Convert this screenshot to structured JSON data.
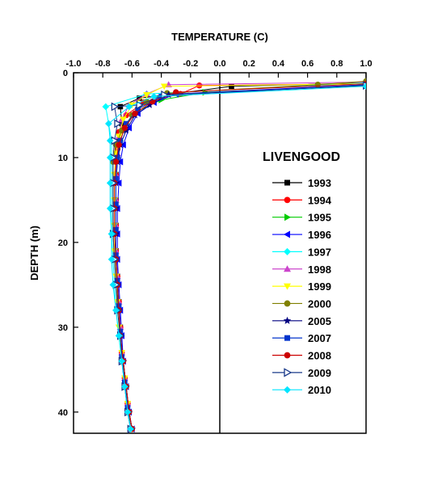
{
  "chart_data": {
    "type": "line",
    "title": "",
    "xlabel": "TEMPERATURE (C)",
    "ylabel": "DEPTH (m)",
    "xlim": [
      -1.0,
      1.0
    ],
    "ylim": [
      42.5,
      0
    ],
    "x_axis_position": "top",
    "y_inverted": true,
    "x_ticks": [
      "-1.0",
      "-0.8",
      "-0.6",
      "-0.4",
      "-0.2",
      "0.0",
      "0.2",
      "0.4",
      "0.6",
      "0.8",
      "1.0"
    ],
    "y_ticks": [
      "0",
      "10",
      "20",
      "30",
      "40"
    ],
    "grid": false,
    "reference_line_x": 0.0,
    "legend_title": "LIVENGOOD",
    "legend_position": "right",
    "series": [
      {
        "name": "1993",
        "color": "#000000",
        "marker": "square",
        "points": [
          [
            1.0,
            1.2
          ],
          [
            0.08,
            1.6
          ],
          [
            -0.55,
            3.0
          ],
          [
            -0.68,
            4.0
          ],
          [
            -0.67,
            6.0
          ],
          [
            -0.69,
            8.0
          ],
          [
            -0.7,
            10.0
          ],
          [
            -0.71,
            12.0
          ],
          [
            -0.71,
            15.0
          ],
          [
            -0.71,
            18.0
          ],
          [
            -0.71,
            21.0
          ],
          [
            -0.7,
            24.0
          ],
          [
            -0.69,
            27.0
          ],
          [
            -0.68,
            30.0
          ],
          [
            -0.67,
            33.0
          ],
          [
            -0.65,
            36.0
          ],
          [
            -0.63,
            39.0
          ],
          [
            -0.61,
            42.0
          ]
        ]
      },
      {
        "name": "1994",
        "color": "#ff0000",
        "marker": "circle",
        "points": [
          [
            1.0,
            1.3
          ],
          [
            -0.14,
            1.5
          ],
          [
            -0.27,
            2.5
          ],
          [
            -0.52,
            3.5
          ],
          [
            -0.64,
            5.0
          ],
          [
            -0.69,
            7.0
          ],
          [
            -0.7,
            9.0
          ],
          [
            -0.71,
            12.0
          ],
          [
            -0.71,
            15.0
          ],
          [
            -0.71,
            18.0
          ],
          [
            -0.71,
            21.0
          ],
          [
            -0.7,
            24.0
          ],
          [
            -0.69,
            27.0
          ],
          [
            -0.68,
            30.0
          ],
          [
            -0.67,
            33.0
          ],
          [
            -0.65,
            36.0
          ],
          [
            -0.63,
            39.0
          ],
          [
            -0.61,
            42.0
          ]
        ]
      },
      {
        "name": "1995",
        "color": "#00cc00",
        "marker": "triangle-right",
        "points": [
          [
            1.0,
            1.5
          ],
          [
            -0.1,
            2.3
          ],
          [
            -0.4,
            3.2
          ],
          [
            -0.56,
            4.5
          ],
          [
            -0.64,
            6.0
          ],
          [
            -0.68,
            8.0
          ],
          [
            -0.7,
            10.0
          ],
          [
            -0.71,
            13.0
          ],
          [
            -0.71,
            16.0
          ],
          [
            -0.71,
            19.0
          ],
          [
            -0.71,
            22.0
          ],
          [
            -0.7,
            25.0
          ],
          [
            -0.69,
            28.0
          ],
          [
            -0.68,
            31.0
          ],
          [
            -0.66,
            34.0
          ],
          [
            -0.64,
            37.0
          ],
          [
            -0.63,
            40.0
          ],
          [
            -0.61,
            42.0
          ]
        ]
      },
      {
        "name": "1996",
        "color": "#0000ff",
        "marker": "triangle-left",
        "points": [
          [
            1.0,
            1.4
          ],
          [
            -0.3,
            2.5
          ],
          [
            -0.45,
            3.5
          ],
          [
            -0.56,
            4.8
          ],
          [
            -0.62,
            6.5
          ],
          [
            -0.66,
            8.5
          ],
          [
            -0.68,
            10.5
          ],
          [
            -0.69,
            13.0
          ],
          [
            -0.7,
            16.0
          ],
          [
            -0.7,
            19.0
          ],
          [
            -0.7,
            22.0
          ],
          [
            -0.69,
            25.0
          ],
          [
            -0.68,
            28.0
          ],
          [
            -0.67,
            31.0
          ],
          [
            -0.66,
            34.0
          ],
          [
            -0.64,
            37.0
          ],
          [
            -0.62,
            40.0
          ],
          [
            -0.6,
            42.0
          ]
        ]
      },
      {
        "name": "1997",
        "color": "#00ffff",
        "marker": "diamond",
        "points": [
          [
            1.0,
            1.2
          ],
          [
            -0.5,
            2.5
          ],
          [
            -0.78,
            4.0
          ],
          [
            -0.76,
            6.0
          ],
          [
            -0.74,
            8.0
          ],
          [
            -0.74,
            10.0
          ],
          [
            -0.74,
            13.0
          ],
          [
            -0.74,
            16.0
          ],
          [
            -0.74,
            19.0
          ],
          [
            -0.73,
            22.0
          ],
          [
            -0.72,
            25.0
          ],
          [
            -0.71,
            28.0
          ],
          [
            -0.69,
            31.0
          ],
          [
            -0.67,
            34.0
          ],
          [
            -0.65,
            37.0
          ],
          [
            -0.63,
            40.0
          ],
          [
            -0.61,
            42.0
          ]
        ]
      },
      {
        "name": "1998",
        "color": "#cc44cc",
        "marker": "triangle-up",
        "points": [
          [
            1.0,
            1.1
          ],
          [
            -0.35,
            1.4
          ],
          [
            -0.5,
            2.5
          ],
          [
            -0.62,
            3.8
          ],
          [
            -0.67,
            5.5
          ],
          [
            -0.69,
            7.5
          ],
          [
            -0.7,
            9.5
          ],
          [
            -0.71,
            12.0
          ],
          [
            -0.71,
            15.0
          ],
          [
            -0.71,
            18.0
          ],
          [
            -0.71,
            21.0
          ],
          [
            -0.7,
            24.0
          ],
          [
            -0.69,
            27.0
          ],
          [
            -0.68,
            30.0
          ],
          [
            -0.67,
            33.0
          ],
          [
            -0.65,
            36.0
          ],
          [
            -0.63,
            39.0
          ],
          [
            -0.61,
            42.0
          ]
        ]
      },
      {
        "name": "1999",
        "color": "#ffff00",
        "marker": "triangle-down",
        "points": [
          [
            1.0,
            1.3
          ],
          [
            -0.38,
            1.6
          ],
          [
            -0.5,
            2.6
          ],
          [
            -0.6,
            3.8
          ],
          [
            -0.66,
            5.5
          ],
          [
            -0.69,
            7.5
          ],
          [
            -0.71,
            9.5
          ],
          [
            -0.72,
            12.0
          ],
          [
            -0.72,
            15.0
          ],
          [
            -0.72,
            18.0
          ],
          [
            -0.72,
            21.0
          ],
          [
            -0.71,
            24.0
          ],
          [
            -0.7,
            27.0
          ],
          [
            -0.69,
            30.0
          ],
          [
            -0.67,
            33.0
          ],
          [
            -0.65,
            36.0
          ],
          [
            -0.63,
            39.0
          ],
          [
            -0.61,
            42.0
          ]
        ]
      },
      {
        "name": "2000",
        "color": "#808000",
        "marker": "circle",
        "points": [
          [
            1.0,
            1.0
          ],
          [
            0.67,
            1.4
          ],
          [
            -0.36,
            2.4
          ],
          [
            -0.5,
            3.4
          ],
          [
            -0.6,
            5.0
          ],
          [
            -0.67,
            6.8
          ],
          [
            -0.71,
            8.5
          ],
          [
            -0.73,
            10.5
          ],
          [
            -0.73,
            13.0
          ],
          [
            -0.73,
            16.0
          ],
          [
            -0.73,
            19.0
          ],
          [
            -0.72,
            22.0
          ],
          [
            -0.71,
            25.0
          ],
          [
            -0.69,
            28.0
          ],
          [
            -0.68,
            31.0
          ],
          [
            -0.66,
            34.0
          ],
          [
            -0.64,
            37.0
          ],
          [
            -0.62,
            40.0
          ],
          [
            -0.6,
            42.0
          ]
        ]
      },
      {
        "name": "2005",
        "color": "#000080",
        "marker": "star",
        "points": [
          [
            1.0,
            1.5
          ],
          [
            -0.35,
            2.6
          ],
          [
            -0.48,
            3.8
          ],
          [
            -0.58,
            5.0
          ],
          [
            -0.64,
            6.8
          ],
          [
            -0.68,
            8.5
          ],
          [
            -0.7,
            10.5
          ],
          [
            -0.71,
            13.0
          ],
          [
            -0.71,
            16.0
          ],
          [
            -0.71,
            19.0
          ],
          [
            -0.71,
            22.0
          ],
          [
            -0.7,
            25.0
          ],
          [
            -0.69,
            28.0
          ],
          [
            -0.68,
            31.0
          ],
          [
            -0.66,
            34.0
          ],
          [
            -0.64,
            37.0
          ],
          [
            -0.62,
            40.0
          ],
          [
            -0.6,
            42.0
          ]
        ]
      },
      {
        "name": "2007",
        "color": "#0033cc",
        "marker": "square",
        "points": [
          [
            1.0,
            1.4
          ],
          [
            -0.4,
            2.8
          ],
          [
            -0.56,
            4.3
          ],
          [
            -0.64,
            6.0
          ],
          [
            -0.68,
            8.0
          ],
          [
            -0.7,
            10.0
          ],
          [
            -0.71,
            12.5
          ],
          [
            -0.71,
            15.5
          ],
          [
            -0.71,
            18.5
          ],
          [
            -0.71,
            21.5
          ],
          [
            -0.7,
            24.5
          ],
          [
            -0.69,
            27.5
          ],
          [
            -0.68,
            30.5
          ],
          [
            -0.67,
            33.5
          ],
          [
            -0.65,
            36.5
          ],
          [
            -0.63,
            39.5
          ],
          [
            -0.61,
            42.0
          ]
        ]
      },
      {
        "name": "2008",
        "color": "#cc0000",
        "marker": "circle",
        "points": [
          [
            1.0,
            1.3
          ],
          [
            -0.3,
            2.3
          ],
          [
            -0.46,
            3.4
          ],
          [
            -0.58,
            4.8
          ],
          [
            -0.65,
            6.5
          ],
          [
            -0.69,
            8.5
          ],
          [
            -0.71,
            10.5
          ],
          [
            -0.72,
            13.0
          ],
          [
            -0.72,
            16.0
          ],
          [
            -0.72,
            19.0
          ],
          [
            -0.71,
            22.0
          ],
          [
            -0.7,
            25.0
          ],
          [
            -0.69,
            28.0
          ],
          [
            -0.68,
            31.0
          ],
          [
            -0.66,
            34.0
          ],
          [
            -0.64,
            37.0
          ],
          [
            -0.62,
            40.0
          ],
          [
            -0.6,
            42.0
          ]
        ]
      },
      {
        "name": "2009",
        "color": "#1a3a8a",
        "marker": "triangle-right-open",
        "points": [
          [
            1.0,
            1.5
          ],
          [
            -0.38,
            2.6
          ],
          [
            -0.55,
            3.8
          ],
          [
            -0.72,
            4.0
          ],
          [
            -0.7,
            6.0
          ],
          [
            -0.72,
            8.0
          ],
          [
            -0.73,
            10.0
          ],
          [
            -0.73,
            13.0
          ],
          [
            -0.73,
            16.0
          ],
          [
            -0.73,
            19.0
          ],
          [
            -0.72,
            22.0
          ],
          [
            -0.71,
            25.0
          ],
          [
            -0.7,
            28.0
          ],
          [
            -0.68,
            31.0
          ],
          [
            -0.67,
            34.0
          ],
          [
            -0.65,
            37.0
          ],
          [
            -0.63,
            40.0
          ],
          [
            -0.61,
            42.0
          ]
        ]
      },
      {
        "name": "2010",
        "color": "#00e5ff",
        "marker": "diamond",
        "points": [
          [
            1.0,
            1.6
          ],
          [
            -0.45,
            2.8
          ],
          [
            -0.62,
            4.0
          ],
          [
            -0.76,
            6.0
          ],
          [
            -0.75,
            8.0
          ],
          [
            -0.75,
            10.0
          ],
          [
            -0.75,
            13.0
          ],
          [
            -0.75,
            16.0
          ],
          [
            -0.74,
            19.0
          ],
          [
            -0.74,
            22.0
          ],
          [
            -0.73,
            25.0
          ],
          [
            -0.71,
            28.0
          ],
          [
            -0.69,
            31.0
          ],
          [
            -0.67,
            34.0
          ],
          [
            -0.65,
            37.0
          ],
          [
            -0.63,
            40.0
          ],
          [
            -0.61,
            42.0
          ]
        ]
      }
    ]
  }
}
